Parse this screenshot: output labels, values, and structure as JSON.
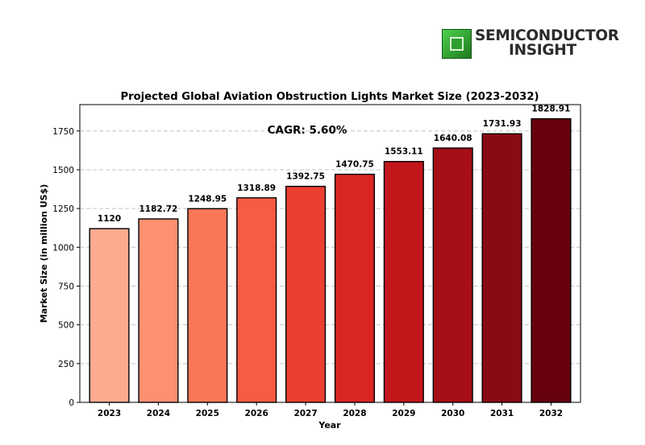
{
  "logo": {
    "line1": "SEMICONDUCTOR",
    "line2": "INSIGHT",
    "icon": "chip-icon",
    "brand_color": "#2e9e2e"
  },
  "chart_data": {
    "type": "bar",
    "title": "Projected Global Aviation Obstruction Lights Market Size (2023-2032)",
    "xlabel": "Year",
    "ylabel": "Market Size (in million US$)",
    "annotation": "CAGR: 5.60%",
    "categories": [
      "2023",
      "2024",
      "2025",
      "2026",
      "2027",
      "2028",
      "2029",
      "2030",
      "2031",
      "2032"
    ],
    "values": [
      1120,
      1182.72,
      1248.95,
      1318.89,
      1392.75,
      1470.75,
      1553.11,
      1640.08,
      1731.93,
      1828.91
    ],
    "value_labels": [
      "1120",
      "1182.72",
      "1248.95",
      "1318.89",
      "1392.75",
      "1470.75",
      "1553.11",
      "1640.08",
      "1731.93",
      "1828.91"
    ],
    "colors": [
      "#fcab8f",
      "#fc9070",
      "#fb7657",
      "#f65b43",
      "#ec3f30",
      "#da2723",
      "#c2161b",
      "#a50f15",
      "#890b12",
      "#67000d"
    ],
    "yticks": [
      0,
      250,
      500,
      750,
      1000,
      1250,
      1500,
      1750
    ],
    "ylim": [
      0,
      1920
    ],
    "grid": "y-dashed",
    "legend": "none"
  }
}
